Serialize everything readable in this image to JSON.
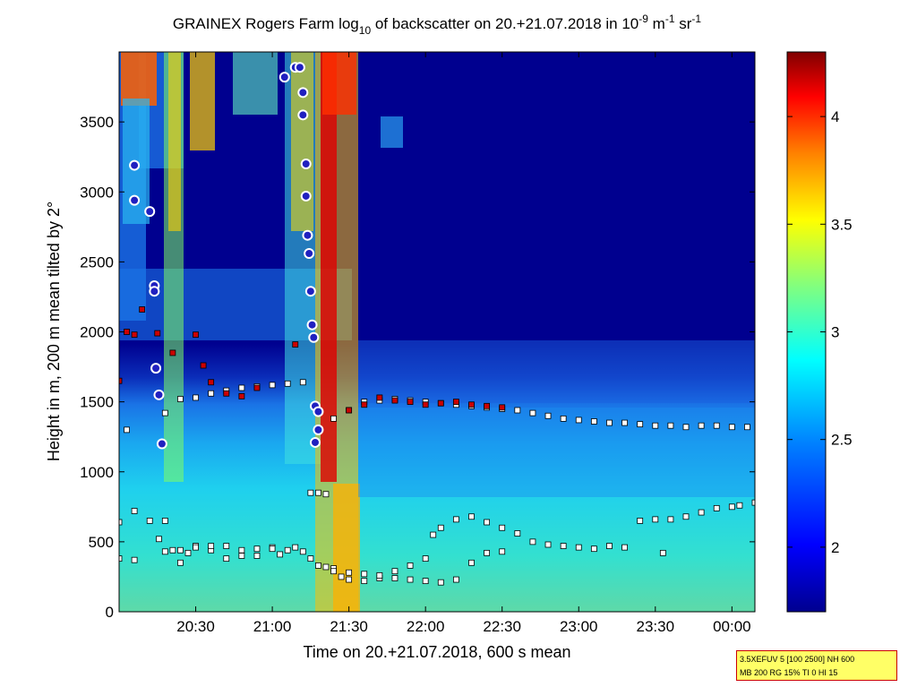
{
  "chart_data": {
    "type": "heatmap",
    "title": {
      "part1": "GRAINEX Rogers Farm log",
      "sub": "10",
      "part2": " of backscatter on 20.+21.07.2018 in 10",
      "sup1": "-9",
      "part3": " m",
      "sup2": "-1",
      "part4": " sr",
      "sup3": "-1"
    },
    "xlabel": "Time on 20.+21.07.2018, 600 s mean",
    "ylabel": "Height in m, 200 m mean tilted by 2°",
    "x_range_hours": [
      20.0,
      24.15
    ],
    "ylim": [
      0,
      4000
    ],
    "x_ticks": [
      {
        "value": 20.5,
        "label": "20:30"
      },
      {
        "value": 21.0,
        "label": "21:00"
      },
      {
        "value": 21.5,
        "label": "21:30"
      },
      {
        "value": 22.0,
        "label": "22:00"
      },
      {
        "value": 22.5,
        "label": "22:30"
      },
      {
        "value": 23.0,
        "label": "23:00"
      },
      {
        "value": 23.5,
        "label": "23:30"
      },
      {
        "value": 24.0,
        "label": "00:00"
      }
    ],
    "y_ticks": [
      {
        "value": 0,
        "label": "0"
      },
      {
        "value": 500,
        "label": "500"
      },
      {
        "value": 1000,
        "label": "1000"
      },
      {
        "value": 1500,
        "label": "1500"
      },
      {
        "value": 2000,
        "label": "2000"
      },
      {
        "value": 2500,
        "label": "2500"
      },
      {
        "value": 3000,
        "label": "3000"
      },
      {
        "value": 3500,
        "label": "3500"
      }
    ],
    "colorbar": {
      "range": [
        1.7,
        4.3
      ],
      "ticks": [
        {
          "value": 2.0,
          "label": "2"
        },
        {
          "value": 2.5,
          "label": "2.5"
        },
        {
          "value": 3.0,
          "label": "3"
        },
        {
          "value": 3.5,
          "label": "3.5"
        },
        {
          "value": 4.0,
          "label": "4"
        }
      ],
      "colors": [
        "#00008f",
        "#0000ff",
        "#0080ff",
        "#00ffff",
        "#80ff80",
        "#ffff00",
        "#ff8000",
        "#ff0000",
        "#800000"
      ]
    },
    "layer_series": [
      {
        "marker": "square-white",
        "points": [
          [
            20.0,
            640
          ],
          [
            20.1,
            720
          ],
          [
            20.2,
            650
          ],
          [
            20.26,
            520
          ],
          [
            20.3,
            430
          ],
          [
            20.4,
            440
          ],
          [
            20.5,
            470
          ],
          [
            20.6,
            440
          ],
          [
            20.7,
            380
          ],
          [
            20.8,
            400
          ],
          [
            20.9,
            450
          ],
          [
            21.0,
            460
          ],
          [
            21.05,
            410
          ],
          [
            21.25,
            850
          ],
          [
            21.3,
            850
          ],
          [
            21.35,
            840
          ],
          [
            21.4,
            310
          ],
          [
            21.45,
            250
          ],
          [
            21.5,
            230
          ],
          [
            21.6,
            220
          ],
          [
            21.7,
            240
          ],
          [
            21.8,
            290
          ],
          [
            21.9,
            330
          ],
          [
            22.0,
            380
          ],
          [
            22.05,
            550
          ],
          [
            22.1,
            600
          ],
          [
            22.2,
            660
          ],
          [
            22.3,
            680
          ],
          [
            22.4,
            640
          ],
          [
            22.5,
            600
          ],
          [
            22.6,
            560
          ],
          [
            22.7,
            500
          ],
          [
            22.8,
            480
          ],
          [
            22.9,
            470
          ],
          [
            23.0,
            460
          ],
          [
            23.1,
            450
          ],
          [
            23.2,
            470
          ],
          [
            23.3,
            460
          ],
          [
            23.4,
            650
          ],
          [
            23.5,
            660
          ],
          [
            23.6,
            660
          ],
          [
            23.7,
            680
          ],
          [
            23.8,
            710
          ],
          [
            23.9,
            740
          ],
          [
            24.0,
            750
          ],
          [
            24.05,
            760
          ],
          [
            24.15,
            780
          ],
          [
            23.55,
            420
          ]
        ]
      },
      {
        "marker": "square-white",
        "points": [
          [
            20.0,
            380
          ],
          [
            20.1,
            370
          ],
          [
            20.3,
            650
          ],
          [
            20.35,
            440
          ],
          [
            20.4,
            350
          ],
          [
            20.45,
            420
          ],
          [
            20.5,
            460
          ],
          [
            20.6,
            470
          ],
          [
            20.7,
            470
          ],
          [
            20.8,
            440
          ],
          [
            20.9,
            400
          ],
          [
            21.0,
            450
          ],
          [
            21.1,
            440
          ],
          [
            21.15,
            460
          ],
          [
            21.2,
            430
          ],
          [
            21.25,
            380
          ],
          [
            21.3,
            330
          ],
          [
            21.35,
            320
          ],
          [
            21.4,
            290
          ],
          [
            21.5,
            280
          ],
          [
            21.6,
            270
          ],
          [
            21.7,
            260
          ],
          [
            21.8,
            240
          ],
          [
            21.9,
            230
          ],
          [
            22.0,
            220
          ],
          [
            22.1,
            210
          ],
          [
            22.2,
            230
          ],
          [
            22.3,
            350
          ],
          [
            22.4,
            420
          ],
          [
            22.5,
            430
          ]
        ]
      },
      {
        "marker": "square-white",
        "points": [
          [
            20.05,
            1300
          ],
          [
            20.3,
            1420
          ],
          [
            20.4,
            1520
          ],
          [
            20.5,
            1530
          ],
          [
            20.6,
            1560
          ],
          [
            20.7,
            1580
          ],
          [
            20.8,
            1600
          ],
          [
            20.9,
            1610
          ],
          [
            21.0,
            1620
          ],
          [
            21.1,
            1630
          ],
          [
            21.2,
            1640
          ],
          [
            21.3,
            1300
          ],
          [
            21.4,
            1380
          ],
          [
            21.5,
            1440
          ],
          [
            21.6,
            1500
          ],
          [
            21.7,
            1510
          ],
          [
            21.8,
            1520
          ],
          [
            21.9,
            1510
          ],
          [
            22.0,
            1500
          ],
          [
            22.1,
            1490
          ],
          [
            22.2,
            1480
          ],
          [
            22.3,
            1470
          ],
          [
            22.4,
            1460
          ],
          [
            22.5,
            1450
          ],
          [
            22.6,
            1440
          ],
          [
            22.7,
            1420
          ],
          [
            22.8,
            1400
          ],
          [
            22.9,
            1380
          ],
          [
            23.0,
            1370
          ],
          [
            23.1,
            1360
          ],
          [
            23.2,
            1350
          ],
          [
            23.3,
            1350
          ],
          [
            23.4,
            1340
          ],
          [
            23.5,
            1330
          ],
          [
            23.6,
            1330
          ],
          [
            23.7,
            1320
          ],
          [
            23.8,
            1330
          ],
          [
            23.9,
            1330
          ],
          [
            24.0,
            1320
          ],
          [
            24.1,
            1320
          ]
        ]
      },
      {
        "marker": "square-red",
        "points": [
          [
            20.0,
            1650
          ],
          [
            20.05,
            2000
          ],
          [
            20.1,
            1980
          ],
          [
            20.15,
            2160
          ],
          [
            20.25,
            1990
          ],
          [
            20.35,
            1850
          ],
          [
            20.5,
            1980
          ],
          [
            20.55,
            1760
          ],
          [
            20.6,
            1640
          ],
          [
            20.7,
            1560
          ],
          [
            20.8,
            1540
          ],
          [
            20.9,
            1600
          ],
          [
            21.15,
            1910
          ],
          [
            21.5,
            1440
          ],
          [
            21.6,
            1480
          ],
          [
            21.7,
            1530
          ],
          [
            21.8,
            1510
          ],
          [
            21.9,
            1500
          ],
          [
            22.0,
            1480
          ],
          [
            22.1,
            1490
          ],
          [
            22.2,
            1500
          ],
          [
            22.3,
            1480
          ],
          [
            22.4,
            1470
          ],
          [
            22.5,
            1460
          ]
        ]
      },
      {
        "marker": "circle-blue",
        "points": [
          [
            20.1,
            3190
          ],
          [
            20.1,
            2940
          ],
          [
            20.2,
            2860
          ],
          [
            20.23,
            2330
          ],
          [
            20.23,
            2290
          ],
          [
            20.24,
            1740
          ],
          [
            20.26,
            1550
          ],
          [
            20.28,
            1200
          ],
          [
            21.08,
            3820
          ],
          [
            21.15,
            3890
          ],
          [
            21.18,
            3890
          ],
          [
            21.2,
            3710
          ],
          [
            21.2,
            3550
          ],
          [
            21.22,
            3200
          ],
          [
            21.22,
            2970
          ],
          [
            21.23,
            2690
          ],
          [
            21.24,
            2560
          ],
          [
            21.25,
            2290
          ],
          [
            21.26,
            2050
          ],
          [
            21.27,
            1960
          ],
          [
            21.28,
            1470
          ],
          [
            21.3,
            1430
          ],
          [
            21.3,
            1300
          ],
          [
            21.28,
            1210
          ]
        ]
      }
    ]
  },
  "info_box": {
    "line1": "3.5XEFUV 5 [100 2500] NH 600",
    "line2": "MB 200 RG 15% TI 0 HI 15"
  }
}
